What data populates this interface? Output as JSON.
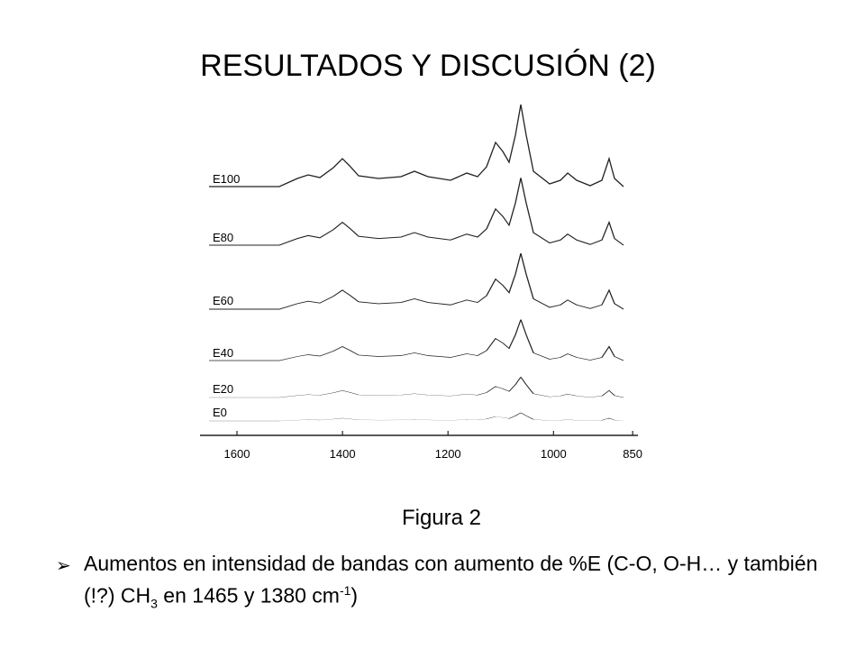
{
  "title": "RESULTADOS Y DISCUSIÓN (2)",
  "figure": {
    "spectra_labels": [
      "E100",
      "E80",
      "E60",
      "E40",
      "E20",
      "E0"
    ],
    "xlim": [
      1670,
      840
    ],
    "xticks": [
      1600,
      1400,
      1200,
      1000,
      850
    ],
    "caption": "Figura 2"
  },
  "bullet": {
    "text_1": "Aumentos en intensidad de bandas con aumento de %E (C-O, O-H… y también (!?) CH",
    "sub": "3",
    "text_2": " en 1465 y 1380 cm",
    "sup": "-1",
    "text_3": ")"
  }
}
